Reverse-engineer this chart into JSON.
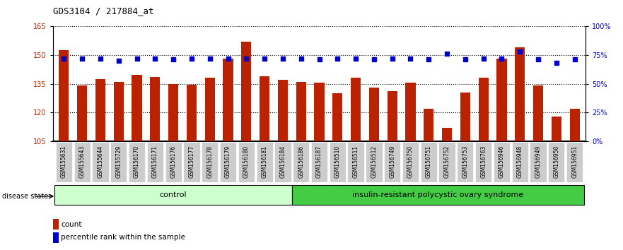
{
  "title": "GDS3104 / 217884_at",
  "samples": [
    "GSM155631",
    "GSM155643",
    "GSM155644",
    "GSM155729",
    "GSM156170",
    "GSM156171",
    "GSM156176",
    "GSM156177",
    "GSM156178",
    "GSM156179",
    "GSM156180",
    "GSM156181",
    "GSM156184",
    "GSM156186",
    "GSM156187",
    "GSM156510",
    "GSM156511",
    "GSM156512",
    "GSM156749",
    "GSM156750",
    "GSM156751",
    "GSM156752",
    "GSM156753",
    "GSM156763",
    "GSM156946",
    "GSM156948",
    "GSM156949",
    "GSM156950",
    "GSM156951"
  ],
  "bar_values": [
    152.5,
    134.0,
    137.5,
    136.0,
    139.5,
    138.5,
    135.0,
    134.5,
    138.0,
    148.0,
    157.0,
    139.0,
    137.0,
    136.0,
    135.5,
    130.0,
    138.0,
    133.0,
    131.0,
    135.5,
    122.0,
    112.0,
    130.5,
    138.0,
    148.0,
    154.0,
    134.0,
    118.0,
    122.0
  ],
  "percentile_values_pct": [
    72,
    72,
    72,
    70,
    72,
    72,
    71,
    72,
    72,
    72,
    72,
    72,
    72,
    72,
    71,
    72,
    72,
    71,
    72,
    72,
    71,
    76,
    71,
    72,
    72,
    78,
    71,
    68,
    71
  ],
  "control_count": 13,
  "disease_count": 16,
  "ylim_left": [
    105,
    165
  ],
  "ylim_right": [
    0,
    100
  ],
  "yticks_left": [
    105,
    120,
    135,
    150,
    165
  ],
  "yticks_right": [
    0,
    25,
    50,
    75,
    100
  ],
  "bar_color": "#bb2200",
  "dot_color": "#0000cc",
  "control_color": "#ccffcc",
  "disease_color": "#44cc44",
  "control_label": "control",
  "disease_label": "insulin-resistant polycystic ovary syndrome",
  "disease_state_label": "disease state",
  "legend_count": "count",
  "legend_percentile": "percentile rank within the sample",
  "background_color": "#ffffff",
  "plot_bg": "#ffffff",
  "grid_color": "#000000",
  "tick_bg_color": "#cccccc"
}
